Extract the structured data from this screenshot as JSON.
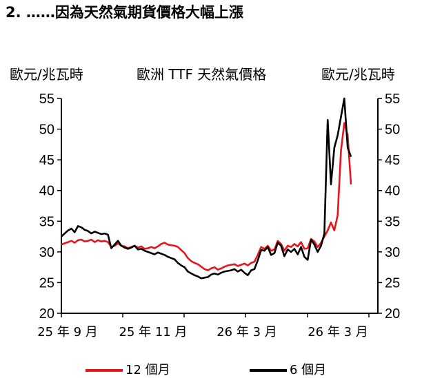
{
  "page": {
    "heading": "2. ……因為天然氣期貨價格大幅上漲"
  },
  "chart_data": {
    "type": "line",
    "title": "歐洲 TTF 天然氣價格",
    "ylabel_left": "歐元/兆瓦時",
    "ylabel_right": "歐元/兆瓦時",
    "ylim": [
      20,
      55
    ],
    "yticks": [
      "20",
      "25",
      "30",
      "35",
      "40",
      "45",
      "50",
      "55"
    ],
    "xtick_labels": [
      "25 年 9 月",
      "25 年 11 月",
      "26 年 3 月",
      "26 年 3 月"
    ],
    "legend_position": "bottom",
    "grid": false,
    "series": [
      {
        "name": "12 個月",
        "color": "#e8141b",
        "values": [
          31.2,
          31.4,
          31.6,
          31.8,
          31.5,
          31.9,
          32.0,
          31.7,
          31.8,
          32.0,
          31.6,
          31.9,
          31.7,
          31.8,
          31.6,
          30.8,
          31.0,
          31.4,
          31.0,
          30.9,
          30.6,
          30.8,
          31.0,
          30.7,
          30.9,
          30.5,
          30.6,
          30.8,
          30.6,
          30.9,
          31.3,
          31.5,
          31.2,
          31.1,
          31.0,
          30.8,
          30.3,
          29.8,
          29.0,
          28.5,
          28.2,
          28.0,
          27.6,
          27.2,
          27.0,
          27.3,
          27.5,
          27.1,
          27.3,
          27.6,
          27.8,
          27.9,
          28.0,
          27.7,
          27.9,
          28.1,
          27.8,
          28.2,
          28.4,
          29.5,
          30.8,
          30.5,
          31.0,
          30.2,
          30.4,
          31.8,
          31.3,
          30.2,
          31.0,
          30.8,
          31.3,
          30.9,
          31.6,
          30.5,
          30.6,
          32.1,
          31.7,
          30.8,
          31.5,
          32.5,
          33.5,
          34.8,
          33.5,
          36.0,
          46.5,
          51.0,
          49.0,
          41.0
        ]
      },
      {
        "name": "6 個月",
        "color": "#000000",
        "values": [
          32.5,
          33.0,
          33.5,
          33.8,
          33.2,
          34.2,
          34.0,
          33.6,
          33.4,
          33.0,
          33.3,
          33.1,
          32.9,
          33.0,
          32.8,
          30.6,
          31.2,
          31.8,
          31.0,
          30.7,
          30.5,
          30.7,
          31.0,
          30.4,
          30.5,
          30.2,
          30.0,
          29.8,
          29.6,
          29.9,
          29.7,
          29.5,
          29.2,
          29.0,
          28.8,
          28.2,
          27.8,
          27.5,
          26.8,
          26.5,
          26.2,
          26.0,
          25.7,
          25.8,
          25.9,
          26.3,
          26.5,
          26.3,
          26.6,
          26.8,
          26.9,
          27.0,
          27.2,
          26.8,
          27.1,
          26.6,
          26.2,
          27.0,
          27.2,
          28.6,
          30.3,
          30.2,
          30.8,
          29.5,
          29.8,
          31.5,
          31.0,
          29.3,
          30.4,
          30.0,
          30.5,
          29.6,
          30.8,
          29.2,
          28.7,
          32.0,
          31.2,
          30.0,
          31.0,
          33.0,
          51.5,
          41.0,
          47.0,
          49.0,
          52.0,
          55.0,
          47.0,
          45.5
        ]
      }
    ]
  }
}
